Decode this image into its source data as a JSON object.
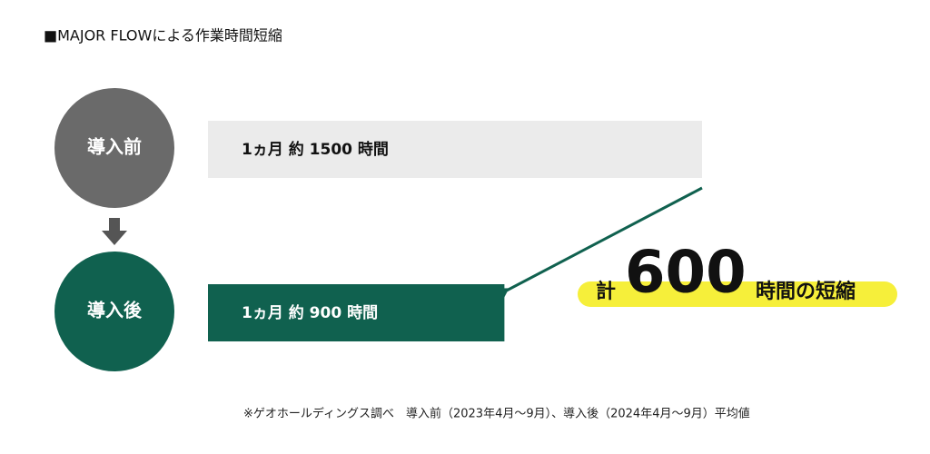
{
  "chart_data": {
    "type": "bar",
    "orientation": "horizontal",
    "title": "■MAJOR FLOWによる作業時間短縮",
    "categories": [
      "導入前",
      "導入後"
    ],
    "values": [
      1500,
      900
    ],
    "value_labels": [
      "1ヵ月 約 1500 時間",
      "1ヵ月 約 900 時間"
    ],
    "colors": [
      "#ebebeb",
      "#10614f"
    ],
    "label_colors": [
      "#111111",
      "#ffffff"
    ],
    "savings": {
      "prefix": "計",
      "value": 600,
      "suffix": "時間の短縮"
    },
    "footnote": "※ゲオホールディングス調べ　導入前（2023年4月～9月）、導入後（2024年4月～9月）平均値"
  }
}
